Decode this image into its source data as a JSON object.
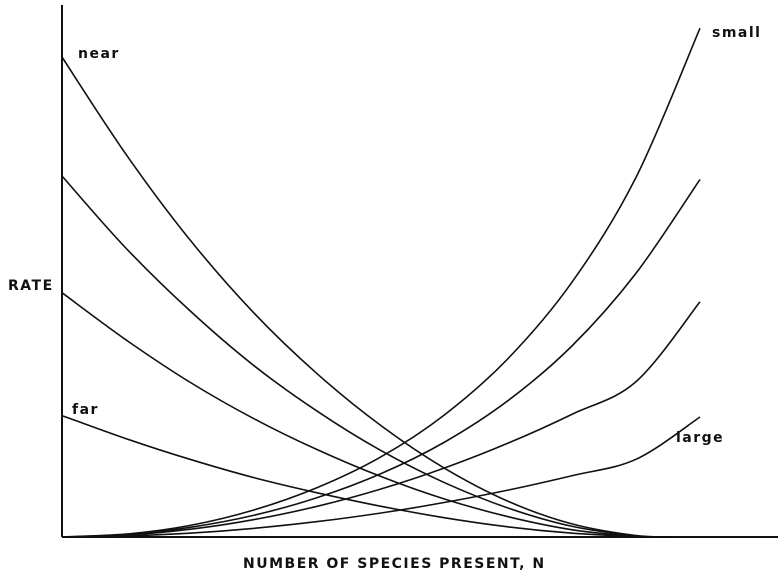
{
  "chart_data": {
    "type": "line",
    "xlabel": "NUMBER OF SPECIES PRESENT, N",
    "ylabel": "RATE",
    "annotations": {
      "near": "near",
      "far": "far",
      "small": "small",
      "large": "large"
    },
    "immigration_curves": [
      {
        "x": [
          0,
          0.1,
          0.2,
          0.3,
          0.4,
          0.5,
          0.6,
          0.7,
          0.8,
          0.9,
          0.96
        ],
        "y": [
          1.0,
          0.798,
          0.62,
          0.468,
          0.34,
          0.232,
          0.143,
          0.074,
          0.027,
          0.003,
          0.0
        ]
      },
      {
        "x": [
          0,
          0.1,
          0.2,
          0.3,
          0.4,
          0.5,
          0.6,
          0.7,
          0.8,
          0.9,
          0.94
        ],
        "y": [
          0.752,
          0.602,
          0.472,
          0.358,
          0.262,
          0.18,
          0.113,
          0.06,
          0.022,
          0.002,
          0.0
        ]
      },
      {
        "x": [
          0,
          0.1,
          0.2,
          0.3,
          0.4,
          0.5,
          0.6,
          0.7,
          0.8,
          0.9,
          0.93
        ],
        "y": [
          0.509,
          0.411,
          0.323,
          0.247,
          0.182,
          0.126,
          0.079,
          0.042,
          0.015,
          0.001,
          0.0
        ]
      },
      {
        "x": [
          0,
          0.1,
          0.2,
          0.3,
          0.4,
          0.5,
          0.6,
          0.7,
          0.8,
          0.9,
          0.92
        ],
        "y": [
          0.253,
          0.205,
          0.162,
          0.124,
          0.092,
          0.064,
          0.04,
          0.021,
          0.008,
          0.001,
          0.0
        ]
      }
    ],
    "extinction_curves": [
      {
        "x": [
          0,
          0.1,
          0.2,
          0.3,
          0.4,
          0.5,
          0.6,
          0.7,
          0.8,
          0.9,
          1.0
        ],
        "y": [
          0.0,
          0.006,
          0.024,
          0.056,
          0.103,
          0.167,
          0.255,
          0.373,
          0.532,
          0.75,
          1.06
        ]
      },
      {
        "x": [
          0,
          0.1,
          0.2,
          0.3,
          0.4,
          0.5,
          0.6,
          0.7,
          0.8,
          0.9,
          1.0
        ],
        "y": [
          0.0,
          0.005,
          0.02,
          0.045,
          0.082,
          0.132,
          0.198,
          0.285,
          0.399,
          0.55,
          0.745
        ]
      },
      {
        "x": [
          0,
          0.1,
          0.2,
          0.3,
          0.4,
          0.5,
          0.6,
          0.7,
          0.8,
          0.9,
          1.0
        ],
        "y": [
          0.0,
          0.004,
          0.016,
          0.036,
          0.064,
          0.1,
          0.144,
          0.196,
          0.256,
          0.324,
          0.49
        ]
      },
      {
        "x": [
          0,
          0.1,
          0.2,
          0.3,
          0.4,
          0.5,
          0.6,
          0.7,
          0.8,
          0.9,
          1.0
        ],
        "y": [
          0.0,
          0.002,
          0.008,
          0.018,
          0.032,
          0.05,
          0.072,
          0.098,
          0.128,
          0.162,
          0.25
        ]
      }
    ]
  }
}
